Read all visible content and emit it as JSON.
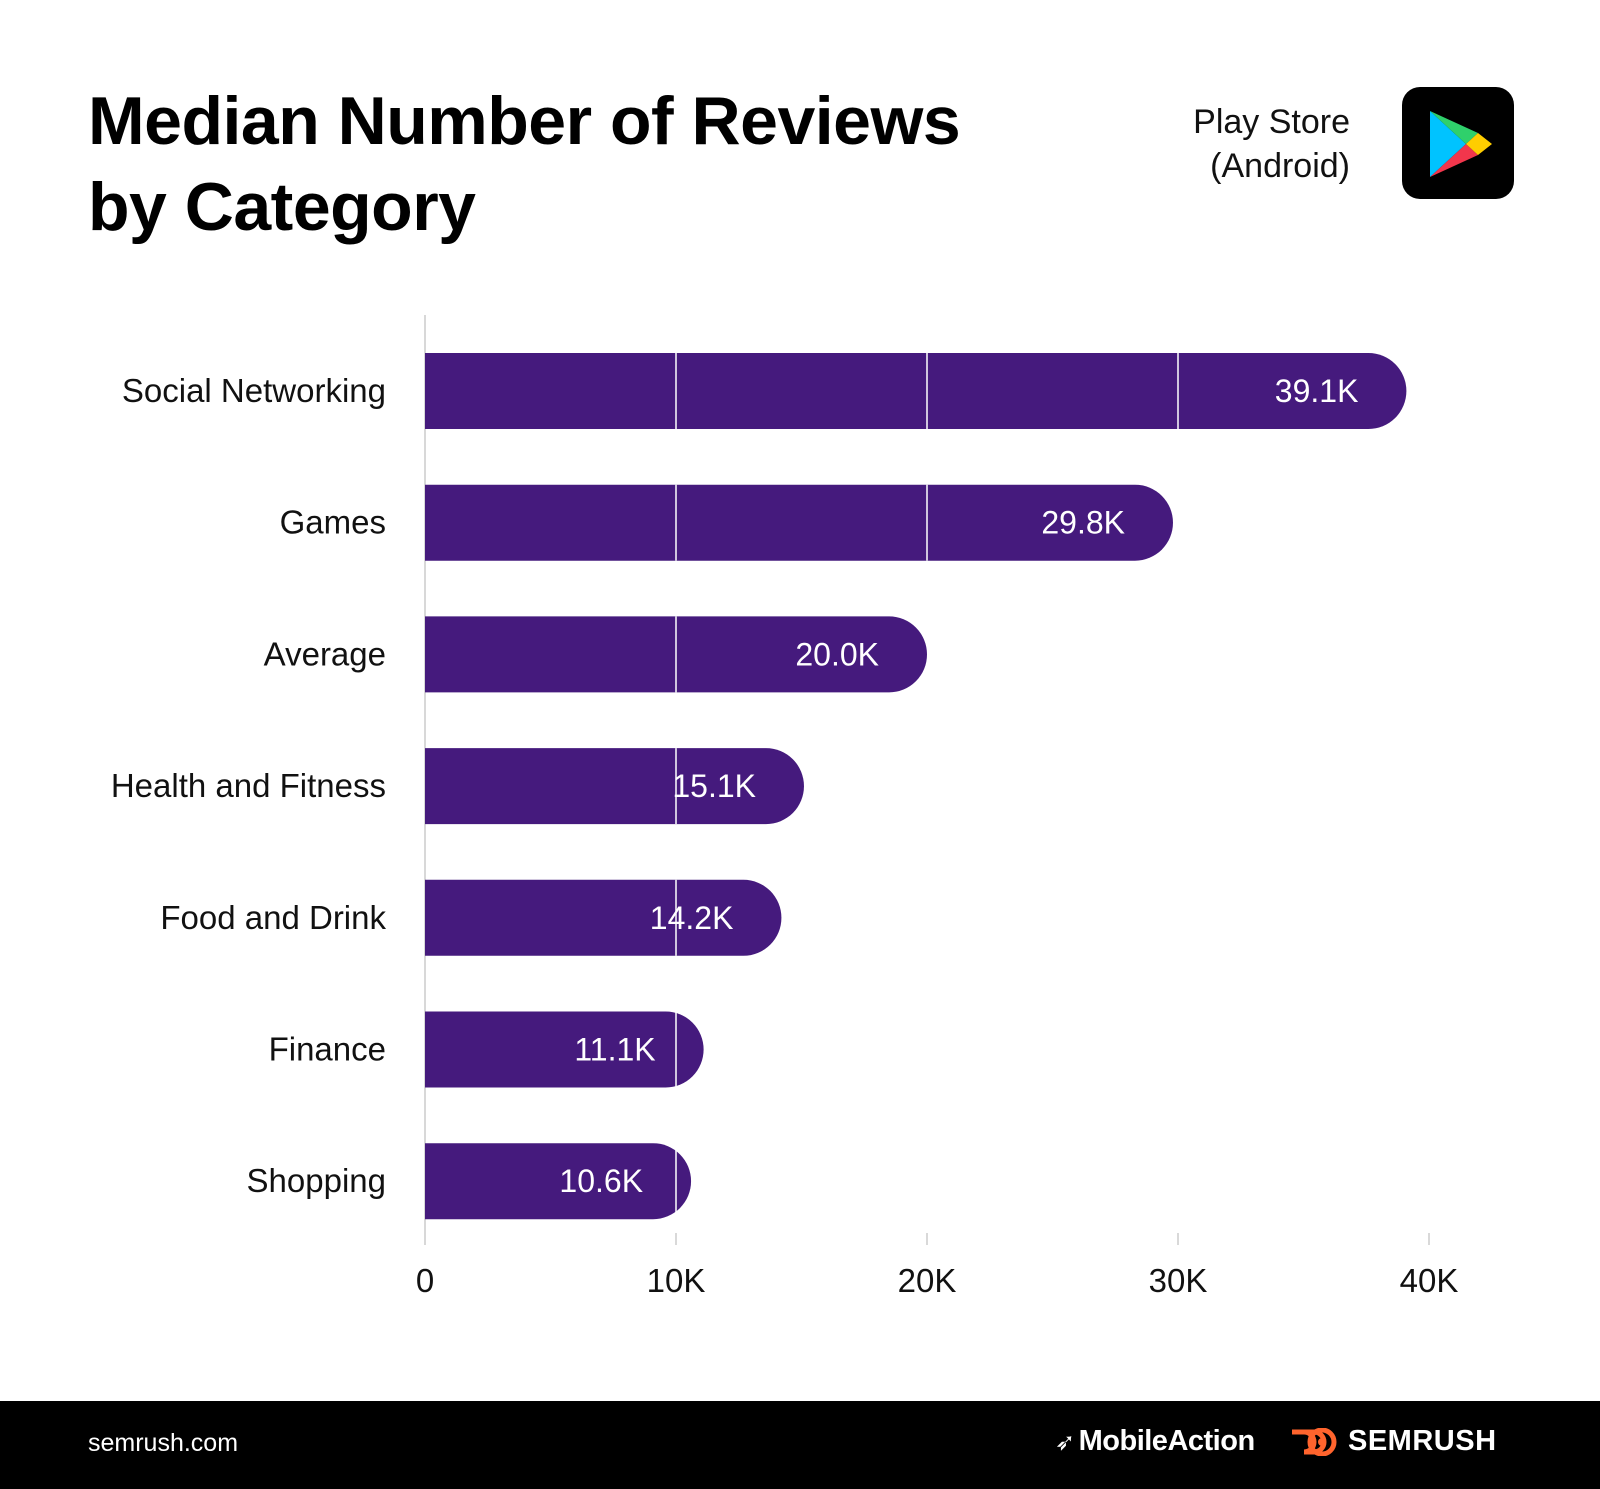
{
  "header": {
    "title_line1": "Median Number of Reviews",
    "title_line2": "by Category",
    "store_line1": "Play Store",
    "store_line2": "(Android)",
    "store_icon": "google-play-icon"
  },
  "chart_data": {
    "type": "bar",
    "orientation": "horizontal",
    "categories": [
      "Social Networking",
      "Games",
      "Average",
      "Health and Fitness",
      "Food and Drink",
      "Finance",
      "Shopping"
    ],
    "values": [
      39.1,
      29.8,
      20.0,
      15.1,
      14.2,
      11.1,
      10.6
    ],
    "value_unit": "K",
    "data_labels": [
      "39.1K",
      "29.8K",
      "20.0K",
      "15.1K",
      "14.2K",
      "11.1K",
      "10.6K"
    ],
    "xlim": [
      0,
      40
    ],
    "xticks": [
      0,
      10,
      20,
      30,
      40
    ],
    "xtick_labels": [
      "0",
      "10K",
      "20K",
      "30K",
      "40K"
    ],
    "grid": true,
    "bar_color": "#451a7d",
    "label_color": "#ffffff"
  },
  "footer": {
    "site": "semrush.com",
    "brand1": "MobileAction",
    "brand2": "SEMRUSH",
    "accent": "#ff642d"
  }
}
